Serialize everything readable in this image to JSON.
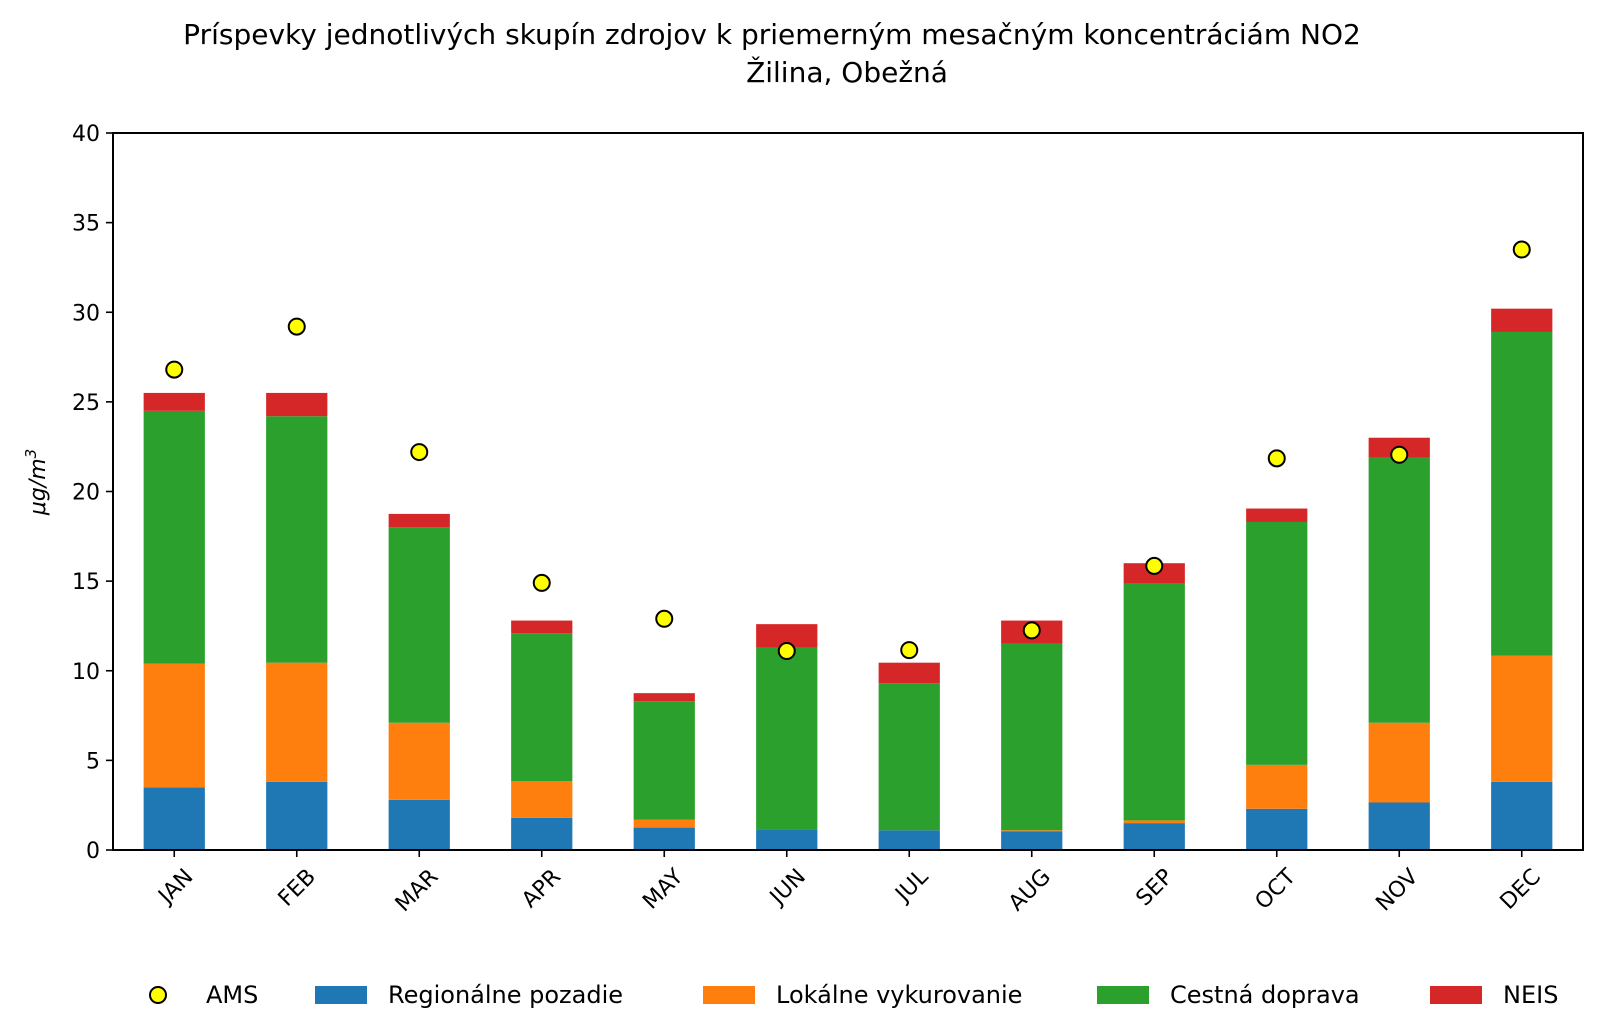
{
  "chart_data": {
    "type": "bar",
    "stacked": true,
    "title": "Príspevky jednotlivých skupín zdrojov k priemerným mesačným koncentráciám NO2",
    "subtitle": "Žilina, Obežná",
    "ylabel": "μg/m",
    "ylabel_sup": "3",
    "xlabel": "",
    "ylim": [
      0,
      40
    ],
    "yticks": [
      0,
      5,
      10,
      15,
      20,
      25,
      30,
      35,
      40
    ],
    "categories": [
      "JAN",
      "FEB",
      "MAR",
      "APR",
      "MAY",
      "JUN",
      "JUL",
      "AUG",
      "SEP",
      "OCT",
      "NOV",
      "DEC"
    ],
    "series": [
      {
        "name": "Regionálne pozadie",
        "color": "#1f77b4",
        "values": [
          3.5,
          3.8,
          2.8,
          1.8,
          1.25,
          1.15,
          1.1,
          1.05,
          1.5,
          2.3,
          2.65,
          3.8
        ]
      },
      {
        "name": "Lokálne vykurovanie",
        "color": "#ff7f0e",
        "values": [
          6.9,
          6.65,
          4.3,
          2.05,
          0.45,
          0.0,
          0.0,
          0.05,
          0.15,
          2.45,
          4.45,
          7.05
        ]
      },
      {
        "name": "Cestná doprava",
        "color": "#2ca02c",
        "values": [
          14.1,
          13.75,
          10.9,
          8.25,
          6.6,
          10.15,
          8.2,
          10.4,
          13.2,
          13.55,
          14.8,
          18.05
        ]
      },
      {
        "name": "NEIS",
        "color": "#d62728",
        "values": [
          1.0,
          1.3,
          0.75,
          0.7,
          0.45,
          1.3,
          1.15,
          1.3,
          1.15,
          0.75,
          1.1,
          1.3
        ]
      }
    ],
    "markers": {
      "name": "AMS",
      "color": "#ffff00",
      "values": [
        26.8,
        29.2,
        22.2,
        14.9,
        12.9,
        11.1,
        11.15,
        12.25,
        15.85,
        21.85,
        22.05,
        33.5
      ]
    },
    "legend": {
      "placement": "bottom",
      "entries": [
        "AMS",
        "Regionálne pozadie",
        "Lokálne vykurovanie",
        "Cestná doprava",
        "NEIS"
      ]
    }
  }
}
